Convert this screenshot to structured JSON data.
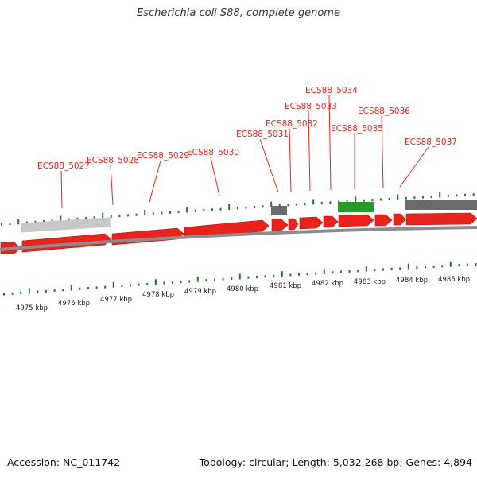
{
  "title": "Escherichia coli S88, complete genome",
  "footer": {
    "accession": "Accession: NC_011742",
    "summary": "Topology: circular; Length: 5,032,268 bp; Genes: 4,894"
  },
  "colors": {
    "cds": "#e8231c",
    "gene_label": "#e8231c",
    "ticks": "#1e7a1e",
    "feature_gray_light": "#c8c8c8",
    "feature_gray_dark": "#6b6b6b",
    "feature_green": "#2a9a2a",
    "backbone": "#8c8c8c"
  },
  "kbp_labels": [
    "4975 kbp",
    "4976 kbp",
    "4977 kbp",
    "4978 kbp",
    "4979 kbp",
    "4980 kbp",
    "4981 kbp",
    "4982 kbp",
    "4983 kbp",
    "4984 kbp",
    "4985 kbp"
  ],
  "gene_labels": [
    "ECS88_5027",
    "ECS88_5028",
    "ECS88_5029",
    "ECS88_5030",
    "ECS88_5031",
    "ECS88_5032",
    "ECS88_5033",
    "ECS88_5034",
    "ECS88_5035",
    "ECS88_5036",
    "ECS88_5037"
  ]
}
